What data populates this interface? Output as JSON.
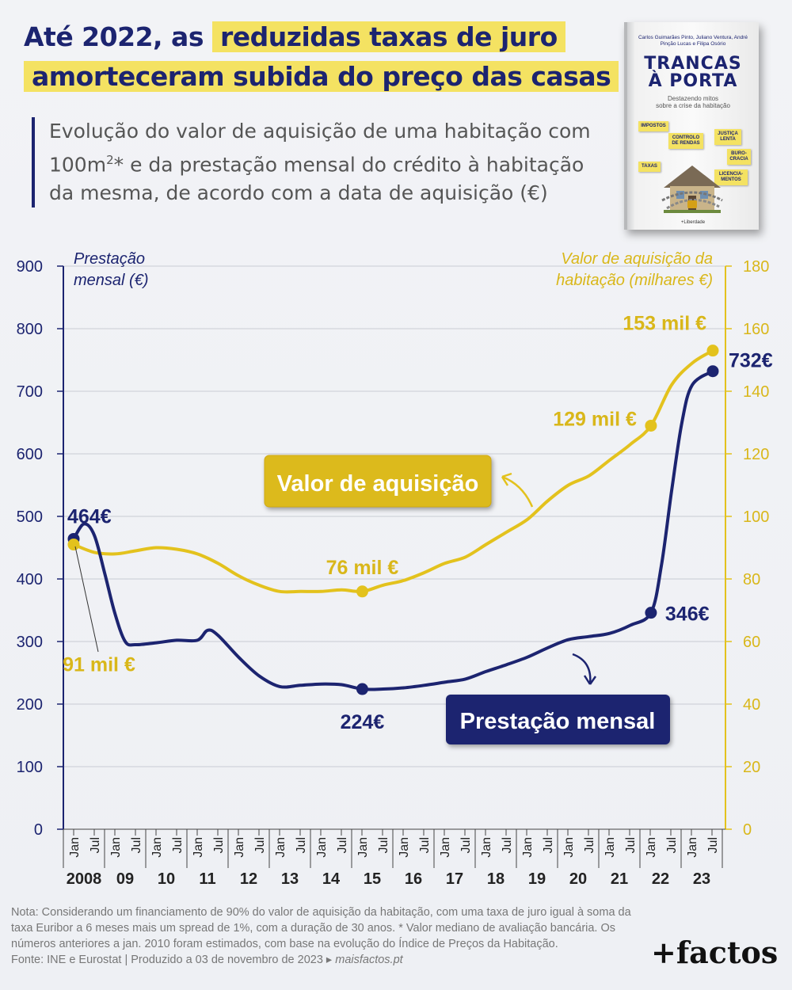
{
  "title": {
    "part1": "Até 2022, as",
    "part2": "reduzidas taxas de juro",
    "part3": "amorteceram subida do preço das casas"
  },
  "subtitle": {
    "line1": "Evolução do valor de aquisição de uma habitação com",
    "line2_pre": "100m",
    "line2_sup": "2",
    "line2_post": "* e da prestação mensal do crédito à habitação",
    "line3": "da mesma, de acordo com a data de aquisição (€)"
  },
  "book": {
    "authors": "Carlos Guimarães Pinto, Juliano Ventura, André Pinção Lucas e Filipa Osório",
    "title_line1": "TRANCAS",
    "title_line2": "À PORTA",
    "subtitle_line1": "Destazendo mitos",
    "subtitle_line2": "sobre a crise da habitação",
    "notes": [
      "IMPOSTOS",
      "JUSTIÇA LENTA",
      "CONTROLO DE RENDAS",
      "BURO-CRACIA",
      "TAXAS",
      "LICENCIA-MENTOS"
    ],
    "publisher": "+Liberdade"
  },
  "colors": {
    "navy": "#1c2470",
    "gold": "#e3c21d",
    "axis_left": "#1c2470",
    "axis_right": "#d9b71a"
  },
  "chart_data": {
    "type": "line",
    "left_axis": {
      "label_line1": "Prestação",
      "label_line2": "mensal (€)",
      "ylim": [
        0,
        900
      ],
      "ticks": [
        0,
        100,
        200,
        300,
        400,
        500,
        600,
        700,
        800,
        900
      ]
    },
    "right_axis": {
      "label_line1": "Valor de aquisição da",
      "label_line2": "habitação (milhares €)",
      "ylim": [
        0,
        180
      ],
      "ticks": [
        0,
        20,
        40,
        60,
        80,
        100,
        120,
        140,
        160,
        180
      ]
    },
    "x_ticks": [
      "Jan",
      "Jul",
      "Jan",
      "Jul",
      "Jan",
      "Jul",
      "Jan",
      "Jul",
      "Jan",
      "Jul",
      "Jan",
      "Jul",
      "Jan",
      "Jul",
      "Jan",
      "Jul",
      "Jan",
      "Jul",
      "Jan",
      "Jul",
      "Jan",
      "Jul",
      "Jan",
      "Jul",
      "Jan",
      "Jul",
      "Jan",
      "Jul",
      "Jan",
      "Jul",
      "Jan",
      "Jul"
    ],
    "years": [
      "2008",
      "09",
      "10",
      "11",
      "12",
      "13",
      "14",
      "15",
      "16",
      "17",
      "18",
      "19",
      "20",
      "21",
      "22",
      "23"
    ],
    "series": [
      {
        "name": "Prestação mensal",
        "axis": "left",
        "points": [
          [
            2008.0,
            464
          ],
          [
            2008.25,
            488
          ],
          [
            2008.5,
            470
          ],
          [
            2008.75,
            410
          ],
          [
            2009.0,
            345
          ],
          [
            2009.25,
            300
          ],
          [
            2009.5,
            295
          ],
          [
            2010.0,
            298
          ],
          [
            2010.5,
            302
          ],
          [
            2011.0,
            302
          ],
          [
            2011.25,
            318
          ],
          [
            2011.5,
            310
          ],
          [
            2012.0,
            275
          ],
          [
            2012.5,
            245
          ],
          [
            2013.0,
            228
          ],
          [
            2013.5,
            230
          ],
          [
            2014.0,
            232
          ],
          [
            2014.5,
            231
          ],
          [
            2015.0,
            224
          ],
          [
            2015.5,
            224
          ],
          [
            2016.0,
            226
          ],
          [
            2016.5,
            230
          ],
          [
            2017.0,
            235
          ],
          [
            2017.5,
            240
          ],
          [
            2018.0,
            252
          ],
          [
            2018.5,
            263
          ],
          [
            2019.0,
            275
          ],
          [
            2019.5,
            290
          ],
          [
            2020.0,
            303
          ],
          [
            2020.5,
            308
          ],
          [
            2021.0,
            313
          ],
          [
            2021.5,
            326
          ],
          [
            2022.0,
            346
          ],
          [
            2022.25,
            420
          ],
          [
            2022.5,
            540
          ],
          [
            2022.75,
            650
          ],
          [
            2023.0,
            710
          ],
          [
            2023.5,
            732
          ]
        ],
        "labeled": [
          {
            "x": 2008.0,
            "y": 464,
            "label": "464€"
          },
          {
            "x": 2015.0,
            "y": 224,
            "label": "224€"
          },
          {
            "x": 2022.0,
            "y": 346,
            "label": "346€"
          },
          {
            "x": 2023.5,
            "y": 732,
            "label": "732€"
          }
        ]
      },
      {
        "name": "Valor de aquisição",
        "axis": "right",
        "points": [
          [
            2008.0,
            91
          ],
          [
            2008.5,
            88.5
          ],
          [
            2009.0,
            88
          ],
          [
            2009.5,
            89
          ],
          [
            2010.0,
            90
          ],
          [
            2010.5,
            89.5
          ],
          [
            2011.0,
            88
          ],
          [
            2011.5,
            85
          ],
          [
            2012.0,
            81
          ],
          [
            2012.5,
            78
          ],
          [
            2013.0,
            76
          ],
          [
            2013.5,
            76
          ],
          [
            2014.0,
            76
          ],
          [
            2014.5,
            76.5
          ],
          [
            2015.0,
            76
          ],
          [
            2015.5,
            78
          ],
          [
            2016.0,
            79.5
          ],
          [
            2016.5,
            82
          ],
          [
            2017.0,
            85
          ],
          [
            2017.5,
            87
          ],
          [
            2018.0,
            91
          ],
          [
            2018.5,
            95
          ],
          [
            2019.0,
            99
          ],
          [
            2019.5,
            105
          ],
          [
            2020.0,
            110
          ],
          [
            2020.5,
            113
          ],
          [
            2021.0,
            118
          ],
          [
            2021.5,
            123
          ],
          [
            2022.0,
            129
          ],
          [
            2022.5,
            142
          ],
          [
            2023.0,
            149
          ],
          [
            2023.5,
            153
          ]
        ],
        "labeled": [
          {
            "x": 2008.0,
            "y": 91,
            "label": "91 mil €"
          },
          {
            "x": 2015.0,
            "y": 76,
            "label": "76 mil €"
          },
          {
            "x": 2022.0,
            "y": 129,
            "label": "129 mil €"
          },
          {
            "x": 2023.5,
            "y": 153,
            "label": "153 mil €"
          }
        ]
      }
    ],
    "callouts": {
      "valor": "Valor de aquisição",
      "prestacao": "Prestação mensal"
    }
  },
  "footer": {
    "note": "Nota: Considerando um financiamento de 90% do valor de aquisição da habitação, com uma taxa de juro igual à soma da taxa Euribor a 6 meses mais um spread de 1%, com a duração de 30 anos. * Valor mediano de avaliação bancária. Os números anteriores a jan. 2010 foram estimados, com base na evolução do Índice de Preços da Habitação.",
    "source": "Fonte: INE e Eurostat | Produzido a 03 de novembro de 2023 ▸",
    "site": "maisfactos.pt"
  },
  "brand": "+factos"
}
